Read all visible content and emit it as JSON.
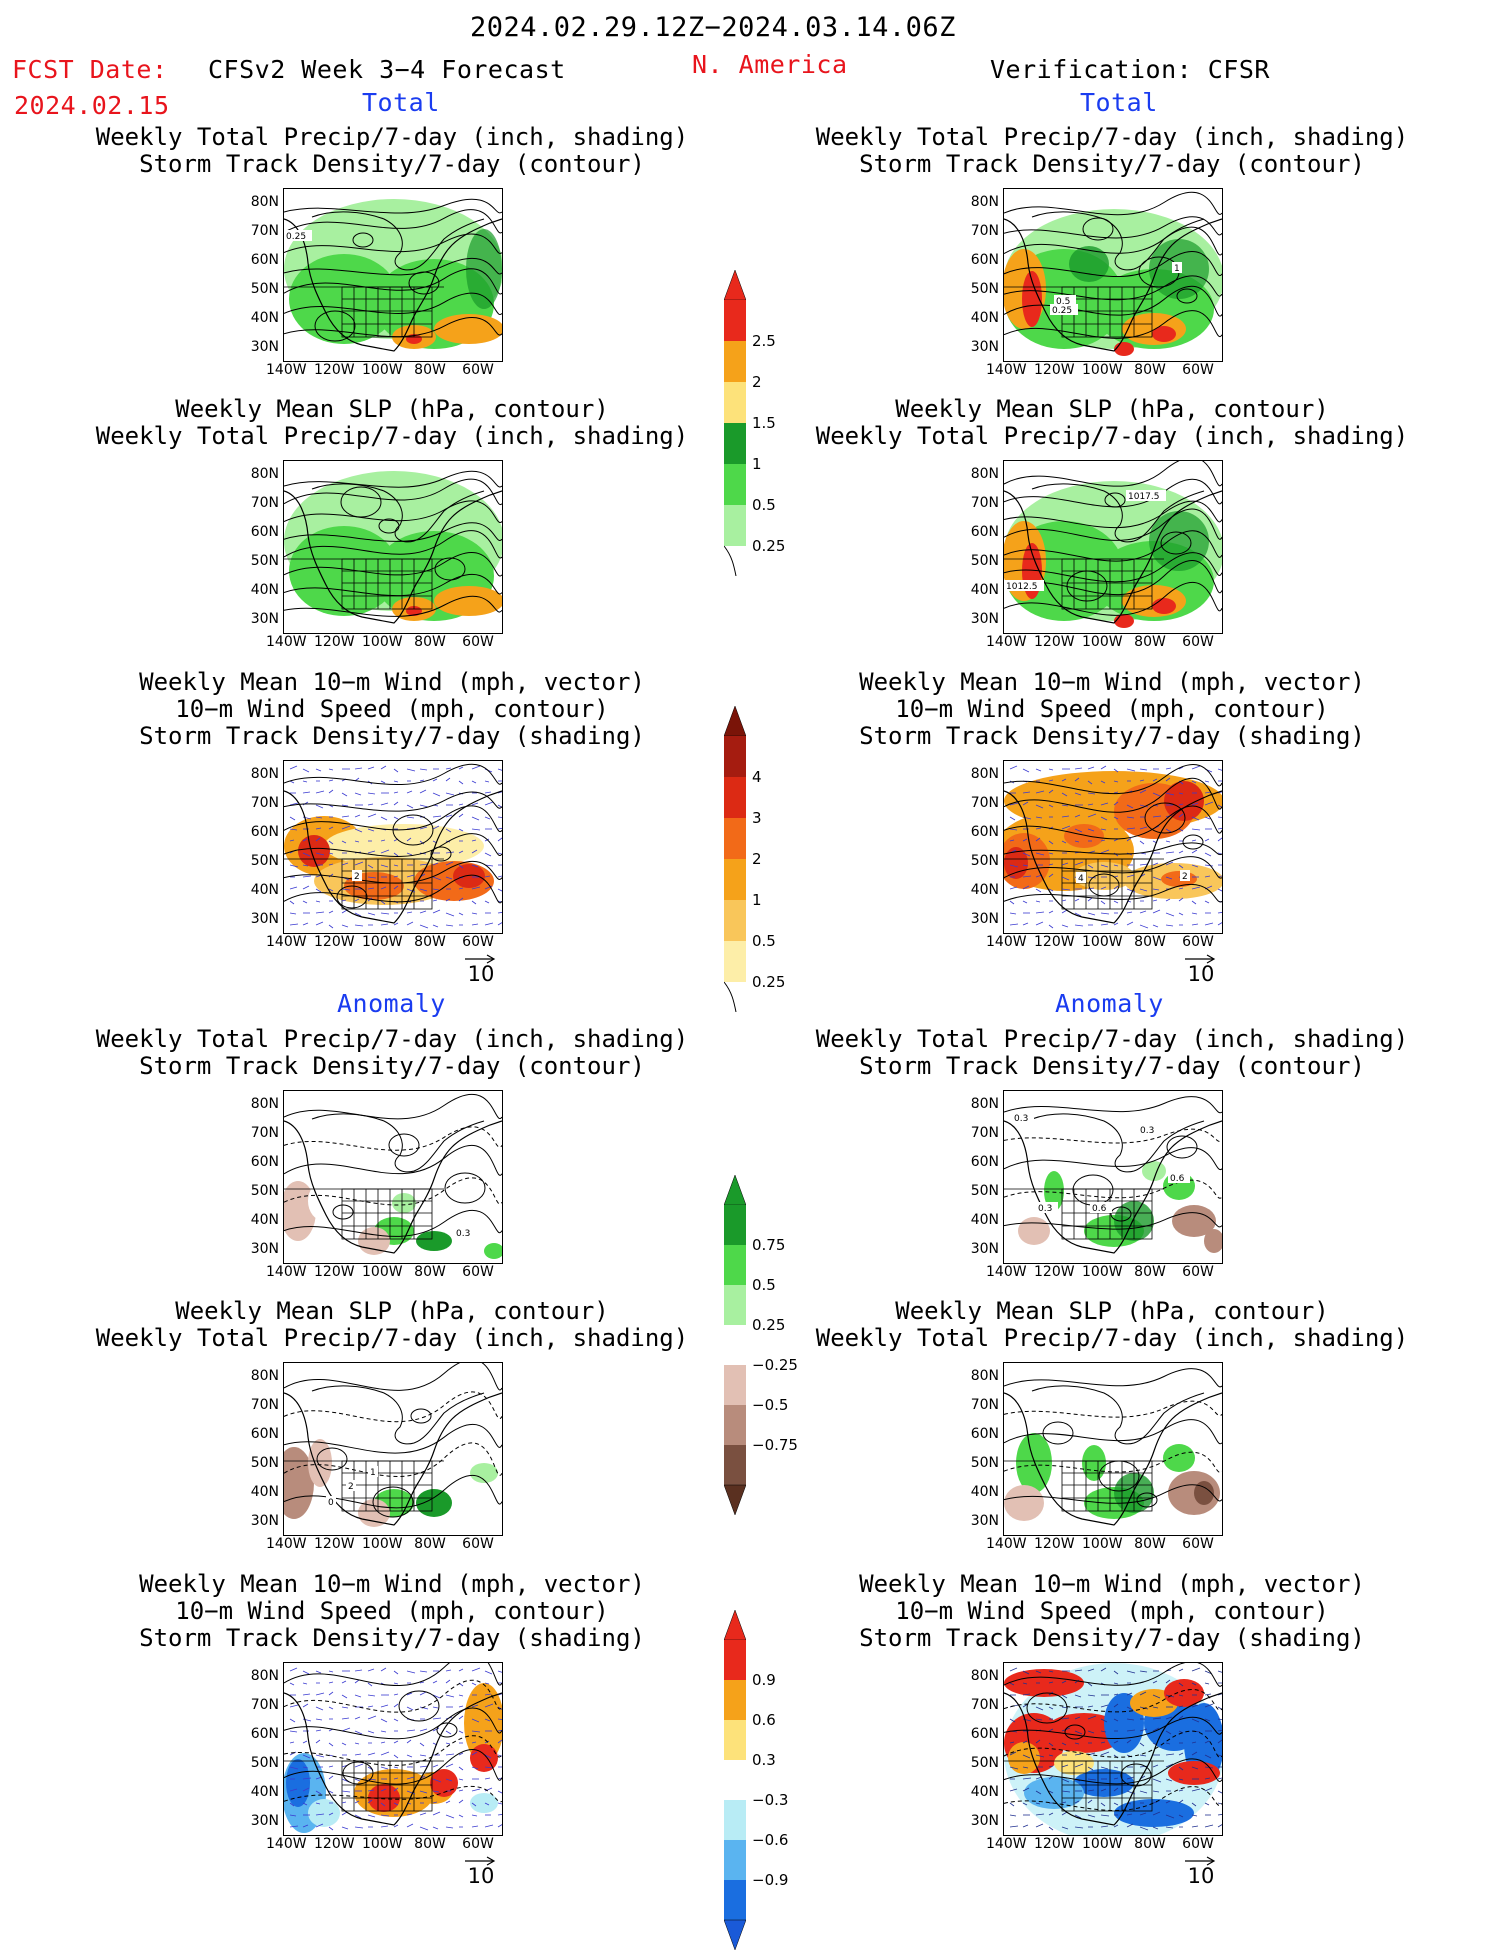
{
  "header": {
    "date_range": "2024.02.29.12Z−2024.03.14.06Z",
    "fcst_label": "FCST Date:",
    "fcst_date": "2024.02.15",
    "forecast_title": "CFSv2 Week 3−4 Forecast",
    "region": "N. America",
    "verification": "Verification: CFSR"
  },
  "sections": {
    "total": "Total",
    "anomaly": "Anomaly"
  },
  "panel_titles": {
    "precip_storm": [
      "Weekly Total Precip/7-day (inch, shading)",
      "Storm Track Density/7-day (contour)"
    ],
    "slp_precip": [
      "Weekly Mean SLP (hPa, contour)",
      "Weekly Total Precip/7-day (inch, shading)"
    ],
    "wind_storm": [
      "Weekly Mean 10−m Wind (mph, vector)",
      "10−m Wind Speed (mph, contour)",
      "Storm Track Density/7-day (shading)"
    ]
  },
  "axes": {
    "lat_labels": [
      "80N",
      "70N",
      "60N",
      "50N",
      "40N",
      "30N"
    ],
    "lon_labels": [
      "140W",
      "120W",
      "100W",
      "80W",
      "60W"
    ]
  },
  "vector_ref": "10",
  "colorbars": {
    "precip_total": {
      "labels": [
        "2.5",
        "2",
        "1.5",
        "1",
        "0.5",
        "0.25"
      ],
      "colors": [
        "#e8291c",
        "#f5a21a",
        "#fde27a",
        "#1a9a2a",
        "#4ed84a",
        "#a8f0a0"
      ]
    },
    "storm_total": {
      "labels": [
        "4",
        "3",
        "2",
        "1",
        "0.5",
        "0.25"
      ],
      "colors": [
        "#a51c10",
        "#dc2a14",
        "#f26a18",
        "#f5a21a",
        "#f9c65a",
        "#fdeea8"
      ]
    },
    "precip_anom": {
      "labels": [
        "0.75",
        "0.5",
        "0.25",
        "−0.25",
        "−0.5",
        "−0.75"
      ],
      "colors": [
        "#1a9a2a",
        "#4ed84a",
        "#a8f0a0",
        "#ffffff",
        "#e2c0b4",
        "#b88c7c",
        "#7a5040"
      ]
    },
    "storm_anom": {
      "labels": [
        "0.9",
        "0.6",
        "0.3",
        "−0.3",
        "−0.6",
        "−0.9"
      ],
      "colors": [
        "#e8291c",
        "#f5a21a",
        "#fde27a",
        "#ffffff",
        "#b8ecf5",
        "#5ab4f0",
        "#1a6ee0"
      ]
    }
  },
  "map_labels": {
    "fc_precip_total": "0.25",
    "ob_precip_total": [
      "1",
      "0.5",
      "0.25"
    ],
    "ob_slp_total": [
      "1017.5",
      "1012.5"
    ],
    "fc_wind_total": "2",
    "ob_wind_total": [
      "4",
      "2"
    ],
    "fc_precip_anom": "0.3",
    "ob_precip_anom": [
      "0.3",
      "0.3",
      "0.6",
      "0.3",
      "0.6"
    ],
    "fc_slp_anom": [
      "1",
      "2",
      "0"
    ]
  }
}
